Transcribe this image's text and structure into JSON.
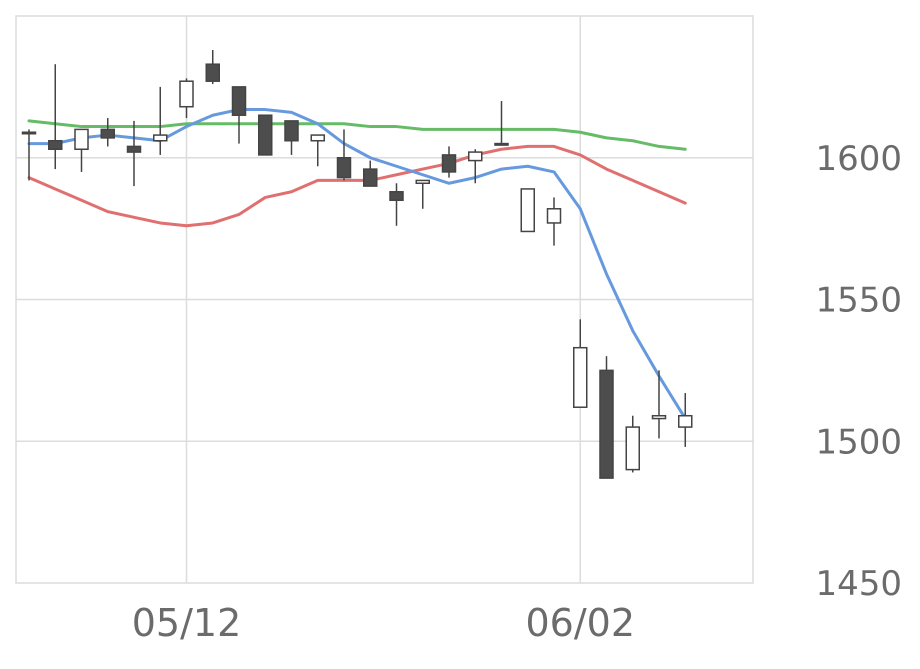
{
  "chart_data": {
    "type": "candlestick",
    "title": "",
    "xlabel": "",
    "ylabel": "",
    "ylim": [
      1450,
      1650
    ],
    "y_ticks": [
      "1450",
      "1500",
      "1550",
      "1600"
    ],
    "x_ticks": [
      {
        "index": 6,
        "label": "05/12"
      },
      {
        "index": 21,
        "label": "06/02"
      }
    ],
    "grid": true,
    "colors": {
      "up_body": "#ffffff",
      "down_body": "#4d4d4d",
      "candle_edge": "#444444",
      "ma_short": "#6699dd",
      "ma_mid": "#e07070",
      "ma_long": "#66bb66",
      "grid": "#dcdcdc"
    },
    "candles": [
      {
        "o": 1609,
        "h": 1610,
        "l": 1592,
        "c": 1609
      },
      {
        "o": 1606,
        "h": 1633,
        "l": 1596,
        "c": 1603
      },
      {
        "o": 1603,
        "h": 1610,
        "l": 1595,
        "c": 1610
      },
      {
        "o": 1610,
        "h": 1614,
        "l": 1604,
        "c": 1607
      },
      {
        "o": 1604,
        "h": 1613,
        "l": 1590,
        "c": 1602
      },
      {
        "o": 1606,
        "h": 1625,
        "l": 1601,
        "c": 1608
      },
      {
        "o": 1618,
        "h": 1628,
        "l": 1614,
        "c": 1627
      },
      {
        "o": 1633,
        "h": 1638,
        "l": 1626,
        "c": 1627
      },
      {
        "o": 1625,
        "h": 1624,
        "l": 1605,
        "c": 1615
      },
      {
        "o": 1615,
        "h": 1614,
        "l": 1603,
        "c": 1601
      },
      {
        "o": 1613,
        "h": 1613,
        "l": 1601,
        "c": 1606
      },
      {
        "o": 1606,
        "h": 1608,
        "l": 1597,
        "c": 1608
      },
      {
        "o": 1600,
        "h": 1610,
        "l": 1592,
        "c": 1593
      },
      {
        "o": 1596,
        "h": 1599,
        "l": 1590,
        "c": 1590
      },
      {
        "o": 1588,
        "h": 1591,
        "l": 1576,
        "c": 1585
      },
      {
        "o": 1591,
        "h": 1592,
        "l": 1582,
        "c": 1592
      },
      {
        "o": 1601,
        "h": 1604,
        "l": 1593,
        "c": 1595
      },
      {
        "o": 1599,
        "h": 1603,
        "l": 1591,
        "c": 1602
      },
      {
        "o": 1605,
        "h": 1620,
        "l": 1605,
        "c": 1605
      },
      {
        "o": 1574,
        "h": 1589,
        "l": 1574,
        "c": 1589
      },
      {
        "o": 1577,
        "h": 1586,
        "l": 1569,
        "c": 1582
      },
      {
        "o": 1512,
        "h": 1543,
        "l": 1512,
        "c": 1533
      },
      {
        "o": 1525,
        "h": 1530,
        "l": 1487,
        "c": 1487
      },
      {
        "o": 1490,
        "h": 1509,
        "l": 1489,
        "c": 1505
      },
      {
        "o": 1508,
        "h": 1525,
        "l": 1501,
        "c": 1509
      },
      {
        "o": 1505,
        "h": 1517,
        "l": 1498,
        "c": 1509
      }
    ],
    "series": [
      {
        "key": "ma_short",
        "values": [
          1605,
          1605,
          1607,
          1608,
          1607,
          1606,
          1611,
          1615,
          1617,
          1617,
          1616,
          1612,
          1605,
          1600,
          1597,
          1594,
          1591,
          1593,
          1596,
          1597,
          1595,
          1582,
          1559,
          1539,
          1523,
          1508
        ]
      },
      {
        "key": "ma_mid",
        "values": [
          1593,
          1589,
          1585,
          1581,
          1579,
          1577,
          1576,
          1577,
          1580,
          1586,
          1588,
          1592,
          1592,
          1592,
          1594,
          1596,
          1598,
          1601,
          1603,
          1604,
          1604,
          1601,
          1596,
          1592,
          1588,
          1584
        ]
      },
      {
        "key": "ma_long",
        "values": [
          1613,
          1612,
          1611,
          1611,
          1611,
          1611,
          1612,
          1612,
          1612,
          1612,
          1612,
          1612,
          1612,
          1611,
          1611,
          1610,
          1610,
          1610,
          1610,
          1610,
          1610,
          1609,
          1607,
          1606,
          1604,
          1603
        ]
      }
    ]
  }
}
